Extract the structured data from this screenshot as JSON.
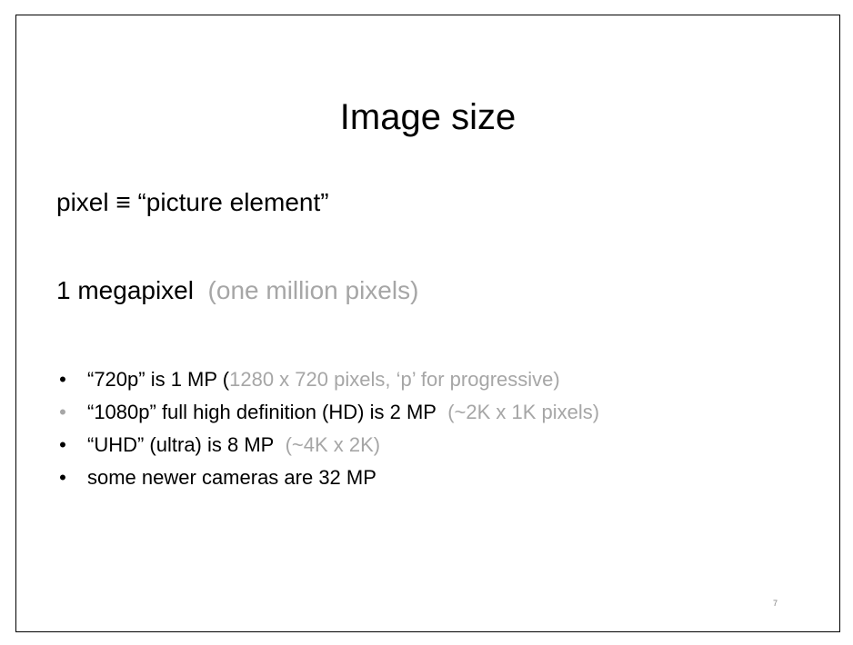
{
  "slide": {
    "title": "Image size",
    "definition": "pixel ≡ “picture element”",
    "megapixel": {
      "main": "1 megapixel",
      "note": "(one million pixels)"
    },
    "bullets": [
      {
        "marker": "•",
        "text": "“720p”  is  1 MP  (",
        "note": "1280 x 720 pixels,  ‘p’ for progressive)"
      },
      {
        "marker": "•",
        "text": "“1080p”  full high definition (HD) is 2 MP",
        "note": "(~2K x 1K pixels)"
      },
      {
        "marker": "•",
        "text": "“UHD” (ultra) is 8 MP",
        "note": "(~4K x 2K)"
      },
      {
        "marker": "•",
        "text": "some newer cameras are 32 MP",
        "note": ""
      }
    ],
    "page_number": "7"
  },
  "colors": {
    "text": "#000000",
    "muted": "#a6a6a6",
    "border": "#000000"
  }
}
